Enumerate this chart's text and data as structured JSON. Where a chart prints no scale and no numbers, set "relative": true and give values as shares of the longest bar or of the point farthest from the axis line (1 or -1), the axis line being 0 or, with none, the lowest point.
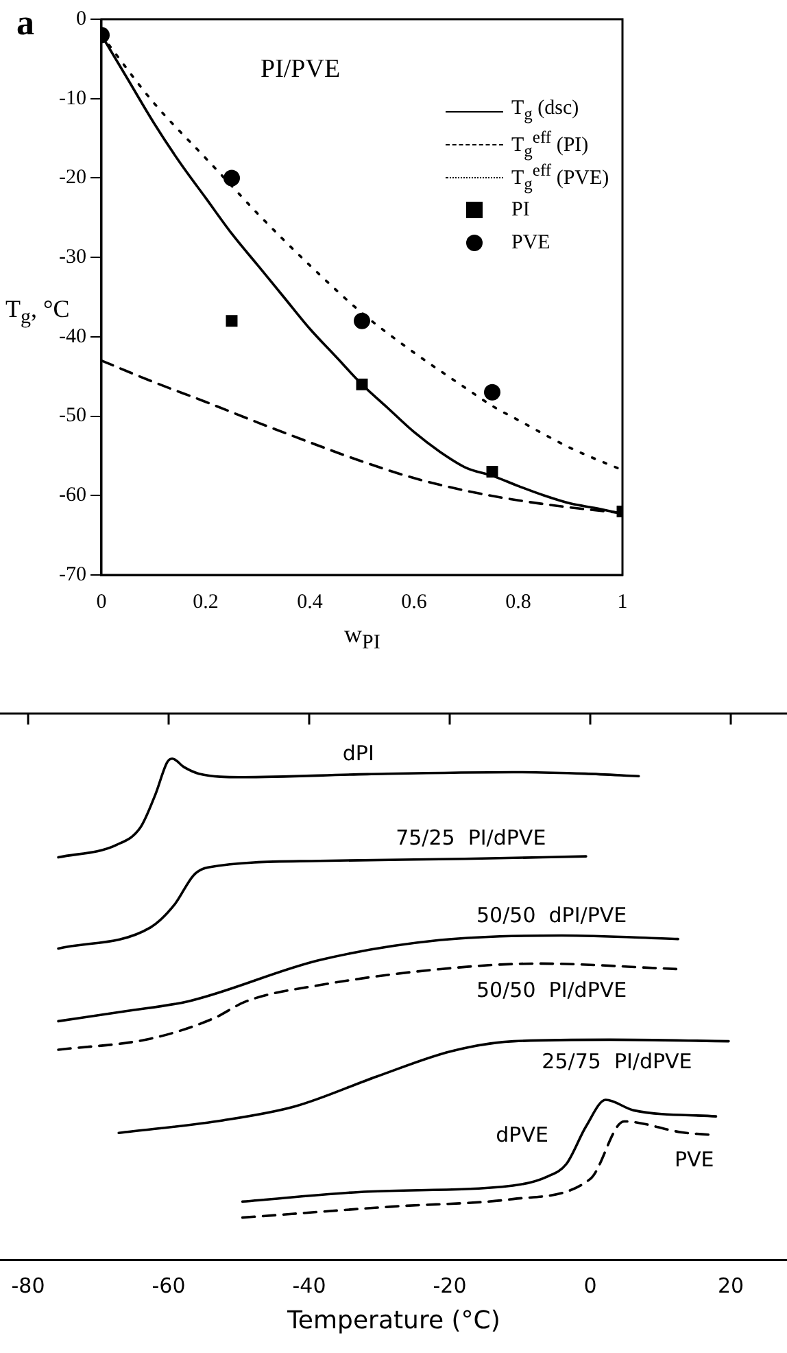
{
  "chart_data": [
    {
      "type": "line",
      "xlabel": "w$_{PI}$",
      "ylabel": "T$_{g}$, °C",
      "xlim": [
        0,
        1
      ],
      "ylim": [
        -70,
        0
      ],
      "xticks": [
        0,
        0.2,
        0.4,
        0.6,
        0.8,
        1
      ],
      "yticks": [
        -70,
        -60,
        -50,
        -40,
        -30,
        -20,
        -10,
        0
      ],
      "legend": "top right",
      "annotations": [
        "a",
        "PI/PVE"
      ],
      "series": [
        {
          "name": "T$_{g}$ (dsc)",
          "type": "line",
          "color": "#000000",
          "line_style": "solid",
          "marker": "none",
          "x": [
            0,
            0.05,
            0.1,
            0.15,
            0.2,
            0.25,
            0.3,
            0.35,
            0.4,
            0.45,
            0.5,
            0.55,
            0.6,
            0.65,
            0.7,
            0.75,
            0.8,
            0.85,
            0.9,
            0.95,
            1
          ],
          "values": [
            -2,
            -7.5,
            -13,
            -18,
            -22.5,
            -27,
            -31,
            -35,
            -39,
            -42.5,
            -46,
            -49,
            -52,
            -54.5,
            -56.5,
            -57.5,
            -58.8,
            -60,
            -61,
            -61.6,
            -62.3
          ]
        },
        {
          "name": "T$_{g}$$^{eff}$ (PI)",
          "type": "line",
          "color": "#000000",
          "line_style": "dashed",
          "marker": "none",
          "x": [
            0,
            0.1,
            0.2,
            0.3,
            0.4,
            0.5,
            0.6,
            0.7,
            0.8,
            0.9,
            1
          ],
          "values": [
            -43,
            -45.7,
            -48.2,
            -50.8,
            -53.3,
            -55.7,
            -57.8,
            -59.4,
            -60.6,
            -61.5,
            -62.2
          ]
        },
        {
          "name": "T$_{g}$$^{eff}$ (PVE)",
          "type": "line",
          "color": "#000000",
          "line_style": "dotted",
          "marker": "none",
          "x": [
            0,
            0.1,
            0.2,
            0.25,
            0.3,
            0.4,
            0.5,
            0.6,
            0.7,
            0.75,
            0.8,
            0.9,
            1
          ],
          "values": [
            -2,
            -10.5,
            -17.5,
            -21,
            -24.5,
            -31,
            -37,
            -42,
            -46.5,
            -48.7,
            -50.5,
            -54,
            -56.8
          ]
        },
        {
          "name": "PI",
          "type": "scatter",
          "color": "#000000",
          "marker": "square",
          "x": [
            0.25,
            0.5,
            0.75,
            1
          ],
          "values": [
            -38,
            -46,
            -57,
            -62
          ]
        },
        {
          "name": "PVE",
          "type": "scatter",
          "color": "#000000",
          "marker": "circle",
          "x": [
            0,
            0.25,
            0.5,
            0.75
          ],
          "values": [
            -2,
            -20,
            -38,
            -47
          ]
        }
      ]
    },
    {
      "type": "line",
      "relative": true,
      "marker": "none",
      "xlabel": "Temperature (°C)",
      "xlim": [
        -84,
        28
      ],
      "xticks": [
        -80,
        -60,
        -40,
        -20,
        0,
        20
      ],
      "series": [
        {
          "name": "dPI",
          "color": "#000000",
          "line_style": "solid",
          "x": [
            -75.7,
            -67.4,
            -64,
            -61.9,
            -60.2,
            -59.5,
            -57.8,
            -55.7,
            -49.6,
            -31.7,
            -11,
            -0.7,
            6.9
          ],
          "values": [
            0.803,
            0.828,
            0.863,
            0.928,
            0.993,
            1,
            0.983,
            0.97,
            0.963,
            0.969,
            0.973,
            0.97,
            0.965
          ]
        },
        {
          "name": "75/25  PI/dPVE",
          "color": "#000000",
          "line_style": "solid",
          "x": [
            -75.7,
            -62.6,
            -59.2,
            -56.4,
            -54.4,
            -38.5,
            -17.9,
            -0.6
          ],
          "values": [
            0.621,
            0.663,
            0.708,
            0.768,
            0.783,
            0.796,
            0.8,
            0.805
          ]
        },
        {
          "name": "50/50  dPI/PVE",
          "color": "#000000",
          "line_style": "solid",
          "x": [
            -75.7,
            -66.1,
            -57.1,
            -38.5,
            -21.3,
            -4.1,
            12.5
          ],
          "values": [
            0.476,
            0.496,
            0.516,
            0.598,
            0.638,
            0.647,
            0.64
          ]
        },
        {
          "name": "50/50  PI/dPVE",
          "color": "#000000",
          "line_style": "dashed",
          "x": [
            -75.7,
            -62.6,
            -53.7,
            -48.9,
            -38.5,
            -21.3,
            -7.5,
            12.5
          ],
          "values": [
            0.419,
            0.441,
            0.481,
            0.516,
            0.548,
            0.58,
            0.591,
            0.58
          ]
        },
        {
          "name": "25/75  PI/dPVE",
          "color": "#000000",
          "line_style": "solid",
          "x": [
            -67.1,
            -52.3,
            -42,
            -30.3,
            -19.8,
            -10.9,
            2.8,
            19.7
          ],
          "values": [
            0.253,
            0.278,
            0.306,
            0.366,
            0.416,
            0.436,
            0.439,
            0.436
          ]
        },
        {
          "name": "dPVE",
          "color": "#000000",
          "line_style": "solid",
          "x": [
            -49.5,
            -31.6,
            -11,
            -6.1,
            -3.4,
            -0.6,
            2.2,
            6.2,
            17.9
          ],
          "values": [
            0.116,
            0.136,
            0.148,
            0.166,
            0.191,
            0.266,
            0.319,
            0.298,
            0.286
          ]
        },
        {
          "name": "PVE",
          "color": "#000000",
          "line_style": "dashed",
          "x": [
            -49.5,
            -28.2,
            -11,
            0,
            4.8,
            13.1,
            17.4
          ],
          "values": [
            0.084,
            0.106,
            0.121,
            0.161,
            0.276,
            0.254,
            0.249
          ]
        }
      ]
    }
  ]
}
